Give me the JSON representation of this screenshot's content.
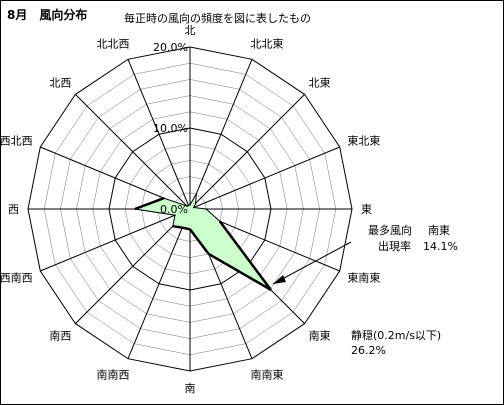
{
  "header": {
    "title": "8月　風向分布",
    "subtitle": "毎正時の風向の頻度を図に表したもの"
  },
  "annotation": {
    "max_label": "最多風向",
    "max_dir": "南東",
    "rate_label": "出現率",
    "rate_value": "14.1%"
  },
  "calm": {
    "label": "静穏(0.2m/s以下)",
    "value": "26.2%"
  },
  "colors": {
    "fill": "#ccffcc",
    "line": "#000000",
    "grid": "#000000"
  },
  "chart_data": {
    "type": "radar",
    "title": "8月　風向分布",
    "directions": [
      "北",
      "北北東",
      "北東",
      "東北東",
      "東",
      "東南東",
      "南東",
      "南南東",
      "南",
      "南南西",
      "南西",
      "西南西",
      "西",
      "西北西",
      "北西",
      "北北西"
    ],
    "values": [
      0.5,
      2.0,
      1.0,
      0.5,
      2.0,
      4.0,
      14.1,
      6.0,
      2.5,
      2.5,
      3.0,
      2.0,
      6.8,
      3.5,
      0.5,
      0.5
    ],
    "rmax": 20,
    "ring_step": 2,
    "tick_labels": [
      "0.0%",
      "10.0%",
      "20.0%"
    ],
    "tick_values": [
      0,
      10,
      20
    ],
    "highlight_index": 6
  }
}
